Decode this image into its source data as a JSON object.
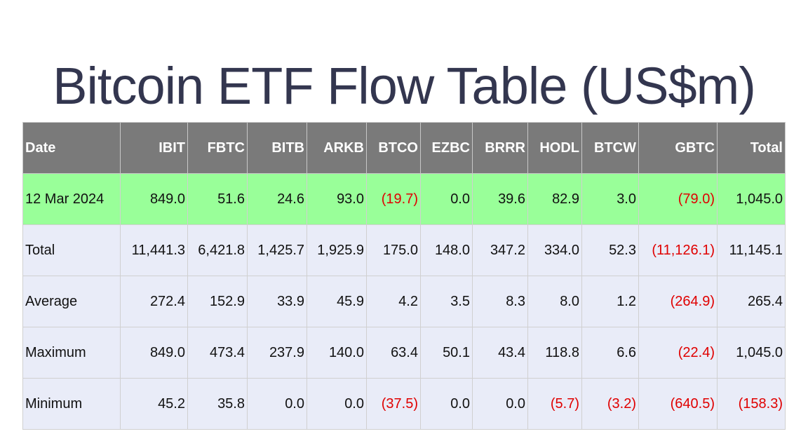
{
  "title": "Bitcoin ETF Flow Table (US$m)",
  "colors": {
    "header_bg": "#7a7a7a",
    "highlight_row_bg": "#99ff99",
    "summary_row_bg": "#e9ecf8",
    "negative_text": "#e00000",
    "title_text": "#33364f"
  },
  "table": {
    "columns": [
      "Date",
      "IBIT",
      "FBTC",
      "BITB",
      "ARKB",
      "BTCO",
      "EZBC",
      "BRRR",
      "HODL",
      "BTCW",
      "GBTC",
      "Total"
    ],
    "rows": [
      {
        "highlight": true,
        "cells": [
          {
            "text": "12 Mar 2024",
            "neg": false
          },
          {
            "text": "849.0",
            "neg": false
          },
          {
            "text": "51.6",
            "neg": false
          },
          {
            "text": "24.6",
            "neg": false
          },
          {
            "text": "93.0",
            "neg": false
          },
          {
            "text": "(19.7)",
            "neg": true
          },
          {
            "text": "0.0",
            "neg": false
          },
          {
            "text": "39.6",
            "neg": false
          },
          {
            "text": "82.9",
            "neg": false
          },
          {
            "text": "3.0",
            "neg": false
          },
          {
            "text": "(79.0)",
            "neg": true
          },
          {
            "text": "1,045.0",
            "neg": false
          }
        ]
      },
      {
        "highlight": false,
        "cells": [
          {
            "text": "Total",
            "neg": false
          },
          {
            "text": "11,441.3",
            "neg": false
          },
          {
            "text": "6,421.8",
            "neg": false
          },
          {
            "text": "1,425.7",
            "neg": false
          },
          {
            "text": "1,925.9",
            "neg": false
          },
          {
            "text": "175.0",
            "neg": false
          },
          {
            "text": "148.0",
            "neg": false
          },
          {
            "text": "347.2",
            "neg": false
          },
          {
            "text": "334.0",
            "neg": false
          },
          {
            "text": "52.3",
            "neg": false
          },
          {
            "text": "(11,126.1)",
            "neg": true
          },
          {
            "text": "11,145.1",
            "neg": false
          }
        ]
      },
      {
        "highlight": false,
        "cells": [
          {
            "text": "Average",
            "neg": false
          },
          {
            "text": "272.4",
            "neg": false
          },
          {
            "text": "152.9",
            "neg": false
          },
          {
            "text": "33.9",
            "neg": false
          },
          {
            "text": "45.9",
            "neg": false
          },
          {
            "text": "4.2",
            "neg": false
          },
          {
            "text": "3.5",
            "neg": false
          },
          {
            "text": "8.3",
            "neg": false
          },
          {
            "text": "8.0",
            "neg": false
          },
          {
            "text": "1.2",
            "neg": false
          },
          {
            "text": "(264.9)",
            "neg": true
          },
          {
            "text": "265.4",
            "neg": false
          }
        ]
      },
      {
        "highlight": false,
        "cells": [
          {
            "text": "Maximum",
            "neg": false
          },
          {
            "text": "849.0",
            "neg": false
          },
          {
            "text": "473.4",
            "neg": false
          },
          {
            "text": "237.9",
            "neg": false
          },
          {
            "text": "140.0",
            "neg": false
          },
          {
            "text": "63.4",
            "neg": false
          },
          {
            "text": "50.1",
            "neg": false
          },
          {
            "text": "43.4",
            "neg": false
          },
          {
            "text": "118.8",
            "neg": false
          },
          {
            "text": "6.6",
            "neg": false
          },
          {
            "text": "(22.4)",
            "neg": true
          },
          {
            "text": "1,045.0",
            "neg": false
          }
        ]
      },
      {
        "highlight": false,
        "cells": [
          {
            "text": "Minimum",
            "neg": false
          },
          {
            "text": "45.2",
            "neg": false
          },
          {
            "text": "35.8",
            "neg": false
          },
          {
            "text": "0.0",
            "neg": false
          },
          {
            "text": "0.0",
            "neg": false
          },
          {
            "text": "(37.5)",
            "neg": true
          },
          {
            "text": "0.0",
            "neg": false
          },
          {
            "text": "0.0",
            "neg": false
          },
          {
            "text": "(5.7)",
            "neg": true
          },
          {
            "text": "(3.2)",
            "neg": true
          },
          {
            "text": "(640.5)",
            "neg": true
          },
          {
            "text": "(158.3)",
            "neg": true
          }
        ]
      }
    ]
  }
}
